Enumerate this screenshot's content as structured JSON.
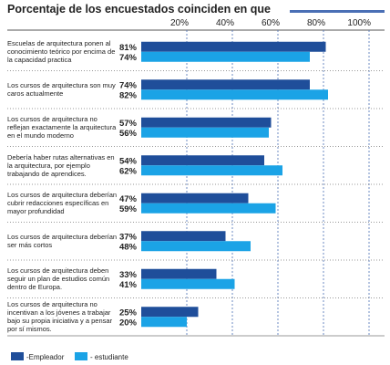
{
  "chart_data": {
    "type": "bar",
    "orientation": "horizontal",
    "title": "Porcentaje de los encuestados coinciden en que",
    "categories": [
      "Escuelas de arquitectura ponen al conocimiento teórico por encima de la capacidad practica",
      "Los cursos de arquitectura son muy caros actualmente",
      "Los cursos de arquitectura no reflejan exactamente la arquitectura en el mundo moderno",
      "Debería haber rutas alternativas en la arquitectura, por ejemplo trabajando de aprendices.",
      "Los cursos de arquitectura deberían cubrir redacciones específicas en mayor profundidad",
      "Los cursos de arquitectura deberían ser más cortos",
      "Los cursos de arquitectura deben seguir un plan de estudios común dentro de Europa.",
      "Los cursos de arquitectura no incentivan a los jóvenes a trabajar bajo su propia iniciativa y a pensar por sí mismos."
    ],
    "series": [
      {
        "name": "-Empleador",
        "color": "#1f4e9a",
        "values": [
          81,
          74,
          57,
          54,
          47,
          37,
          33,
          25
        ],
        "value_labels": [
          "81%",
          "74%",
          "57%",
          "54%",
          "47%",
          "37%",
          "33%",
          "25%"
        ]
      },
      {
        "name": "- estudiante",
        "color": "#1ba3e6",
        "values": [
          74,
          82,
          56,
          62,
          59,
          48,
          41,
          20
        ],
        "value_labels": [
          "74%",
          "82%",
          "56%",
          "62%",
          "59%",
          "48%",
          "41%",
          "20%"
        ]
      }
    ],
    "xlim": [
      0,
      100
    ],
    "xticks": [
      {
        "value": 20,
        "label": "20%"
      },
      {
        "value": 40,
        "label": "40%"
      },
      {
        "value": 60,
        "label": "60%"
      },
      {
        "value": 80,
        "label": "80%"
      },
      {
        "value": 100,
        "label": "100%"
      }
    ],
    "grid": true,
    "legend": "bottom-left"
  }
}
